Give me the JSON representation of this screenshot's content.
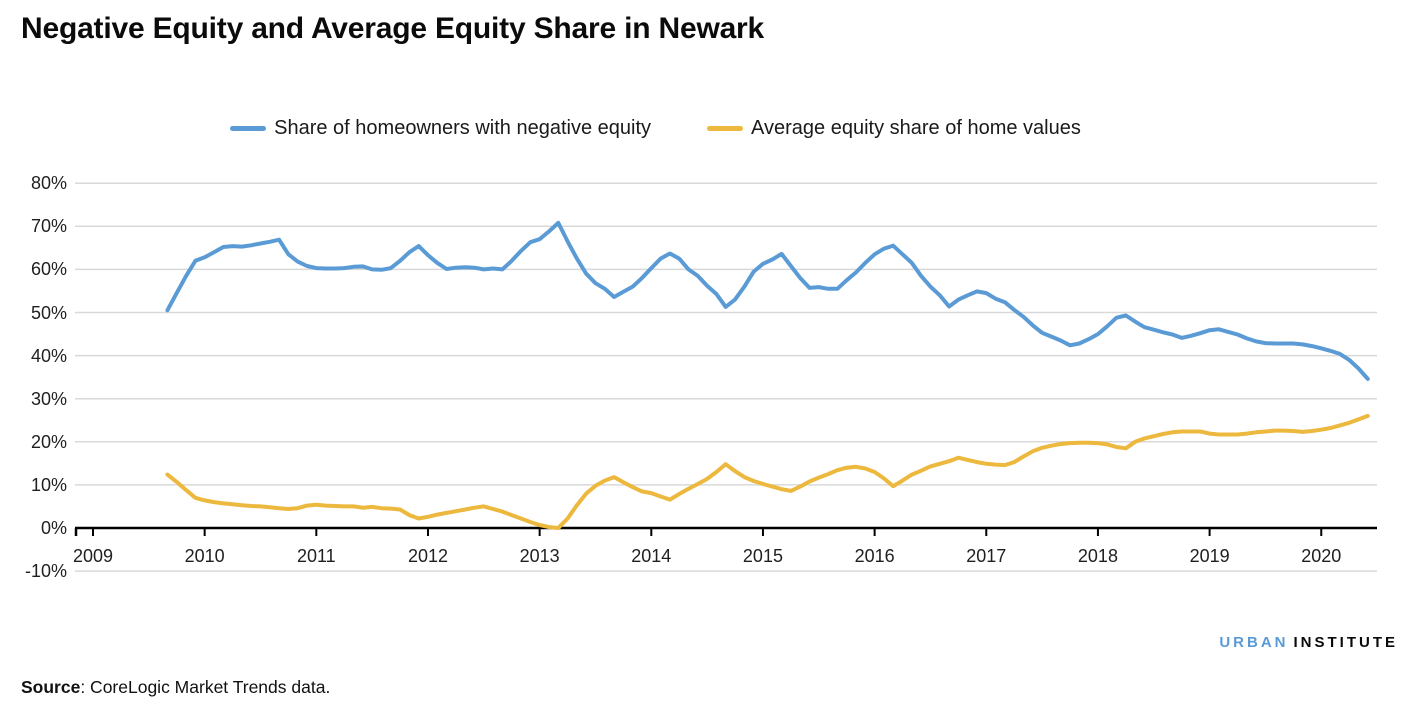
{
  "title": "Negative Equity and Average Equity Share in Newark",
  "logo": {
    "urban": "URBAN",
    "institute": "INSTITUTE",
    "urban_color": "#5b9bd5",
    "institute_color": "#0a0a0a"
  },
  "source": {
    "label": "Source",
    "text": ": CoreLogic Market Trends data."
  },
  "colors": {
    "background": "#ffffff",
    "gridline": "#d9d9d9",
    "axis": "#000000",
    "text": "#1f1f1f"
  },
  "chart_data": {
    "type": "line",
    "title": "Negative Equity and Average Equity Share in Newark",
    "grid": "horizontal",
    "legend_position": "top-center",
    "x_axis": {
      "tick_labels": [
        "2009",
        "2010",
        "2011",
        "2012",
        "2013",
        "2014",
        "2015",
        "2016",
        "2017",
        "2018",
        "2019",
        "2020"
      ],
      "start_year": 2009,
      "start_month": 9,
      "frequency": "monthly"
    },
    "y_axis": {
      "tick_labels": [
        "80%",
        "70%",
        "60%",
        "50%",
        "40%",
        "30%",
        "20%",
        "10%",
        "0%",
        "-10%"
      ],
      "tick_values": [
        80,
        70,
        60,
        50,
        40,
        30,
        20,
        10,
        0,
        -10
      ],
      "min": -10,
      "max": 80,
      "unit": "%"
    },
    "series": [
      {
        "name": "Share of homeowners with negative equity",
        "color": "#5b9bd5",
        "values": [
          50.5,
          54.5,
          58.5,
          62.0,
          62.8,
          64.0,
          65.2,
          65.4,
          65.3,
          65.6,
          66.0,
          66.4,
          66.9,
          63.5,
          61.8,
          60.8,
          60.3,
          60.2,
          60.2,
          60.3,
          60.6,
          60.7,
          60.0,
          59.9,
          60.3,
          62.0,
          64.0,
          65.4,
          63.3,
          61.5,
          60.1,
          60.4,
          60.5,
          60.4,
          60.0,
          60.2,
          60.0,
          62.0,
          64.3,
          66.3,
          67.0,
          68.8,
          70.8,
          66.5,
          62.5,
          59.0,
          56.8,
          55.5,
          53.6,
          54.8,
          56.0,
          58.0,
          60.3,
          62.5,
          63.7,
          62.5,
          60.0,
          58.5,
          56.2,
          54.3,
          51.3,
          53.0,
          56.0,
          59.5,
          61.3,
          62.3,
          63.6,
          60.8,
          58.0,
          55.7,
          55.9,
          55.5,
          55.5,
          57.5,
          59.3,
          61.5,
          63.5,
          64.8,
          65.5,
          63.5,
          61.5,
          58.5,
          56.0,
          54.0,
          51.4,
          53.0,
          54.0,
          54.9,
          54.5,
          53.2,
          52.4,
          50.6,
          49.0,
          47.0,
          45.3,
          44.4,
          43.5,
          42.4,
          42.8,
          43.8,
          45.0,
          46.8,
          48.8,
          49.3,
          47.9,
          46.6,
          46.0,
          45.4,
          44.9,
          44.1,
          44.6,
          45.2,
          45.9,
          46.1,
          45.5,
          44.9,
          44.0,
          43.3,
          42.9,
          42.8,
          42.8,
          42.8,
          42.6,
          42.2,
          41.7,
          41.1,
          40.4,
          39.0,
          37.0,
          34.6
        ]
      },
      {
        "name": "Average equity share of home values",
        "color": "#ecb83d",
        "values": [
          12.4,
          10.7,
          8.8,
          7.0,
          6.4,
          6.0,
          5.7,
          5.5,
          5.3,
          5.1,
          5.0,
          4.8,
          4.6,
          4.4,
          4.6,
          5.2,
          5.4,
          5.2,
          5.1,
          5.0,
          5.0,
          4.7,
          4.9,
          4.6,
          4.5,
          4.3,
          3.0,
          2.2,
          2.6,
          3.1,
          3.5,
          3.9,
          4.3,
          4.7,
          5.0,
          4.4,
          3.8,
          3.0,
          2.2,
          1.4,
          0.7,
          0.2,
          0.0,
          2.2,
          5.3,
          8.0,
          9.8,
          11.0,
          11.8,
          10.6,
          9.5,
          8.5,
          8.1,
          7.3,
          6.6,
          7.9,
          9.1,
          10.2,
          11.4,
          13.0,
          14.8,
          13.2,
          11.8,
          10.9,
          10.2,
          9.6,
          9.0,
          8.6,
          9.6,
          10.8,
          11.7,
          12.5,
          13.4,
          14.0,
          14.2,
          13.8,
          13.0,
          11.5,
          9.7,
          11.0,
          12.4,
          13.3,
          14.3,
          14.9,
          15.5,
          16.3,
          15.8,
          15.3,
          14.9,
          14.7,
          14.6,
          15.3,
          16.6,
          17.8,
          18.6,
          19.1,
          19.5,
          19.7,
          19.8,
          19.8,
          19.7,
          19.4,
          18.8,
          18.5,
          20.0,
          20.8,
          21.3,
          21.8,
          22.2,
          22.4,
          22.4,
          22.4,
          21.9,
          21.7,
          21.7,
          21.7,
          21.9,
          22.2,
          22.4,
          22.6,
          22.6,
          22.5,
          22.3,
          22.5,
          22.8,
          23.2,
          23.8,
          24.4,
          25.2,
          26.0
        ]
      }
    ]
  }
}
